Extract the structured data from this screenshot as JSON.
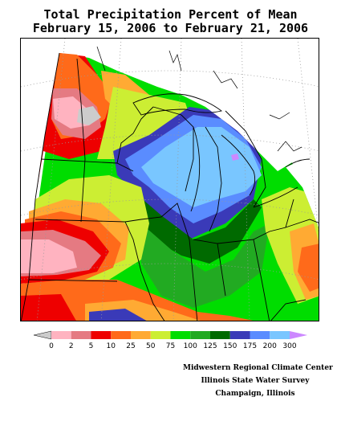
{
  "title": {
    "line1": "Total Precipitation Percent of Mean",
    "line2": "February 15, 2006 to February 21, 2006"
  },
  "legend": {
    "colors": [
      "#cccccc",
      "#ffb3c0",
      "#e57a82",
      "#ee0000",
      "#ff6a1a",
      "#ffaa33",
      "#ccee33",
      "#00dd00",
      "#22aa22",
      "#006a00",
      "#3a3ab8",
      "#5a8cff",
      "#79c6ff",
      "#cc88ff"
    ],
    "labels": [
      "0",
      "2",
      "5",
      "10",
      "25",
      "50",
      "75",
      "100",
      "125",
      "150",
      "175",
      "200",
      "300"
    ]
  },
  "credits": {
    "line1": "Midwestern Regional Climate Center",
    "line2": "Illinois State Water Survey",
    "line3": "Champaign, Illinois"
  },
  "map": {
    "region": "Midwest United States",
    "no_data_color": "#ffffff",
    "boundary_color": "#000000",
    "graticule_color": "#9a9a9a"
  }
}
